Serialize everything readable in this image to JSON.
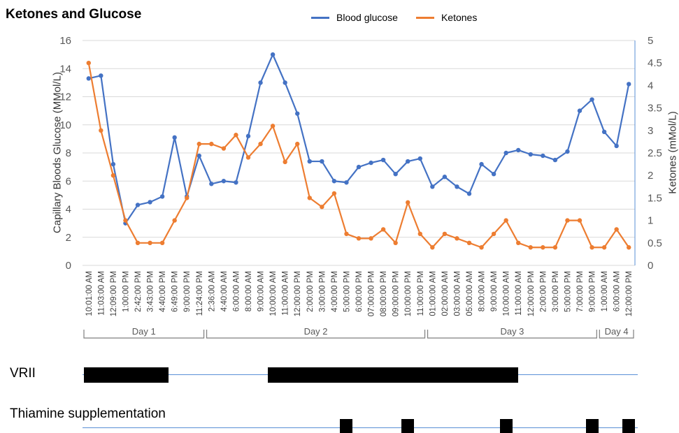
{
  "title": "Ketones and Glucose",
  "colors": {
    "glucose": "#4472C4",
    "ketones": "#ED7D31",
    "grid": "#d9d9d9",
    "axis_text": "#595959"
  },
  "legend": {
    "glucose": "Blood glucose",
    "ketones": "Ketones"
  },
  "chart_data": {
    "type": "line",
    "title": "Ketones and Glucose",
    "ylabel_left": "Capillary Bloods Glucose (MMol/L)",
    "ylabel_right": "Ketones (mMol/L)",
    "ylim_left": [
      0,
      16
    ],
    "ylim_right": [
      0,
      5
    ],
    "yticks_left": [
      "0",
      "2",
      "4",
      "6",
      "8",
      "10",
      "12",
      "14",
      "16"
    ],
    "yticks_right": [
      "0",
      "0.5",
      "1",
      "1.5",
      "2",
      "2.5",
      "3",
      "3.5",
      "4",
      "4.5",
      "5"
    ],
    "grid": "horizontal",
    "legend_position": "top",
    "categories": [
      "10:01:00 AM",
      "11:03:00 AM",
      "12:09:00 PM",
      "1:00:00 PM",
      "2:42:00 PM",
      "3:43:00 PM",
      "4:40:00 PM",
      "6:49:00 PM",
      "9:00:00 PM",
      "11:24:00 PM",
      "2:36:00 AM",
      "4:40:00 AM",
      "6:00:00 AM",
      "8:00:00 AM",
      "9:00:00 AM",
      "10:00:00 AM",
      "11:00:00 AM",
      "12:00:00 PM",
      "2:00:00 PM",
      "3:00:00 PM",
      "4:00:00 PM",
      "5:00:00 PM",
      "6:00:00 PM",
      "07:00:00 PM",
      "08:00:00 PM",
      "09:00:00 PM",
      "10:00:00 PM",
      "11:00:00 PM",
      "01:00:00 AM",
      "02:00:00 AM",
      "03:00:00 AM",
      "05:00:00 AM",
      "8:00:00 AM",
      "9:00:00 AM",
      "10:00:00 AM",
      "11:00:00 AM",
      "12:00:00 PM",
      "2:00:00 PM",
      "3:00:00 PM",
      "5:00:00 PM",
      "7:00:00 PM",
      "9:00:00 PM",
      "1:00:00 AM",
      "6:00:00 AM",
      "12:00:00 PM"
    ],
    "series": [
      {
        "name": "Blood glucose",
        "axis": "left",
        "color": "#4472C4",
        "values": [
          13.3,
          13.5,
          7.2,
          3.0,
          4.3,
          4.5,
          4.9,
          9.1,
          4.9,
          7.8,
          5.8,
          6.0,
          5.9,
          9.2,
          13.0,
          15.0,
          13.0,
          10.8,
          7.4,
          7.4,
          6.0,
          5.9,
          7.0,
          7.3,
          7.5,
          6.5,
          7.4,
          7.6,
          5.6,
          6.3,
          5.6,
          5.1,
          7.2,
          6.5,
          8.0,
          8.2,
          7.9,
          7.8,
          7.5,
          8.1,
          11.0,
          11.8,
          9.5,
          8.5,
          12.9
        ]
      },
      {
        "name": "Ketones",
        "axis": "right",
        "color": "#ED7D31",
        "values": [
          4.5,
          3.0,
          2.0,
          1.0,
          0.5,
          0.5,
          0.5,
          1.0,
          1.5,
          2.7,
          2.7,
          2.6,
          2.9,
          2.4,
          2.7,
          3.1,
          2.3,
          2.7,
          1.5,
          1.3,
          1.6,
          0.7,
          0.6,
          0.6,
          0.8,
          0.5,
          1.4,
          0.7,
          0.4,
          0.7,
          0.6,
          0.5,
          0.4,
          0.7,
          1.0,
          0.5,
          0.4,
          0.4,
          0.4,
          1.0,
          1.0,
          0.4,
          0.4,
          0.8,
          0.4
        ]
      }
    ],
    "day_groups": [
      {
        "label": "Day 1",
        "start": 0,
        "end": 9
      },
      {
        "label": "Day 2",
        "start": 10,
        "end": 27
      },
      {
        "label": "Day 3",
        "start": 28,
        "end": 41
      },
      {
        "label": "Day 4",
        "start": 42,
        "end": 44
      }
    ]
  },
  "rows": {
    "vrii": {
      "label": "VRII",
      "blocks": [
        {
          "from": 0,
          "to": 7
        },
        {
          "from": 15,
          "to": 35.5
        }
      ]
    },
    "thiamine": {
      "label": "Thiamine supplementation",
      "blocks": [
        {
          "at": 21
        },
        {
          "at": 26
        },
        {
          "at": 34
        },
        {
          "at": 41
        },
        {
          "at": 44
        }
      ]
    }
  }
}
